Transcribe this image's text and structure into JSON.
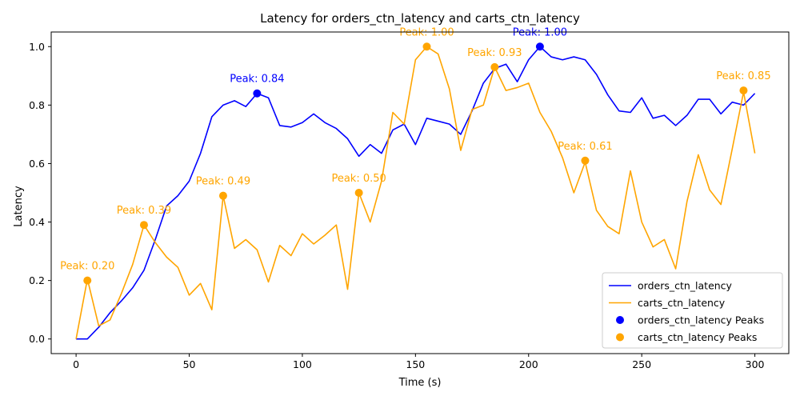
{
  "chart_data": {
    "type": "line",
    "title": "Latency for orders_ctn_latency and carts_ctn_latency",
    "xlabel": "Time (s)",
    "ylabel": "Latency",
    "xlim": [
      -11,
      315
    ],
    "ylim": [
      -0.05,
      1.05
    ],
    "x_ticks": [
      0,
      50,
      100,
      150,
      200,
      250,
      300
    ],
    "y_ticks": [
      0.0,
      0.2,
      0.4,
      0.6,
      0.8,
      1.0
    ],
    "x_tick_labels": [
      "0",
      "50",
      "100",
      "150",
      "200",
      "250",
      "300"
    ],
    "y_tick_labels": [
      "0.0",
      "0.2",
      "0.4",
      "0.6",
      "0.8",
      "1.0"
    ],
    "grid": false,
    "legend_position": "bottom-right",
    "x": [
      0,
      5,
      10,
      15,
      20,
      25,
      30,
      35,
      40,
      45,
      50,
      55,
      60,
      65,
      70,
      75,
      80,
      85,
      90,
      95,
      100,
      105,
      110,
      115,
      120,
      125,
      130,
      135,
      140,
      145,
      150,
      155,
      160,
      165,
      170,
      175,
      180,
      185,
      190,
      195,
      200,
      205,
      210,
      215,
      220,
      225,
      230,
      235,
      240,
      245,
      250,
      255,
      260,
      265,
      270,
      275,
      280,
      285,
      290,
      295,
      300
    ],
    "series": [
      {
        "name": "orders_ctn_latency",
        "color": "#0000ff",
        "values": [
          0.0,
          0.0,
          0.04,
          0.09,
          0.13,
          0.175,
          0.235,
          0.34,
          0.455,
          0.49,
          0.54,
          0.635,
          0.76,
          0.8,
          0.815,
          0.795,
          0.84,
          0.825,
          0.73,
          0.725,
          0.74,
          0.77,
          0.74,
          0.72,
          0.685,
          0.625,
          0.665,
          0.635,
          0.715,
          0.735,
          0.665,
          0.755,
          0.745,
          0.735,
          0.7,
          0.78,
          0.875,
          0.925,
          0.94,
          0.88,
          0.955,
          1.0,
          0.965,
          0.955,
          0.965,
          0.955,
          0.905,
          0.835,
          0.78,
          0.775,
          0.825,
          0.755,
          0.765,
          0.73,
          0.765,
          0.82,
          0.82,
          0.77,
          0.81,
          0.8,
          0.84
        ],
        "peaks": [
          {
            "x": 80,
            "y": 0.84,
            "label": "Peak: 0.84"
          },
          {
            "x": 205,
            "y": 1.0,
            "label": "Peak: 1.00"
          }
        ]
      },
      {
        "name": "carts_ctn_latency",
        "color": "#ffa500",
        "values": [
          0.0,
          0.205,
          0.045,
          0.065,
          0.155,
          0.255,
          0.39,
          0.33,
          0.28,
          0.245,
          0.15,
          0.19,
          0.1,
          0.49,
          0.31,
          0.34,
          0.305,
          0.195,
          0.32,
          0.285,
          0.36,
          0.325,
          0.355,
          0.39,
          0.17,
          0.5,
          0.4,
          0.54,
          0.775,
          0.735,
          0.955,
          1.0,
          0.975,
          0.855,
          0.645,
          0.785,
          0.8,
          0.93,
          0.85,
          0.86,
          0.875,
          0.775,
          0.71,
          0.62,
          0.5,
          0.605,
          0.44,
          0.385,
          0.36,
          0.575,
          0.4,
          0.315,
          0.34,
          0.24,
          0.47,
          0.63,
          0.51,
          0.46,
          0.65,
          0.845,
          0.635
        ],
        "peaks": [
          {
            "x": 5,
            "y": 0.2,
            "label": "Peak: 0.20"
          },
          {
            "x": 30,
            "y": 0.39,
            "label": "Peak: 0.39"
          },
          {
            "x": 65,
            "y": 0.49,
            "label": "Peak: 0.49"
          },
          {
            "x": 125,
            "y": 0.5,
            "label": "Peak: 0.50"
          },
          {
            "x": 155,
            "y": 1.0,
            "label": "Peak: 1.00"
          },
          {
            "x": 185,
            "y": 0.93,
            "label": "Peak: 0.93"
          },
          {
            "x": 225,
            "y": 0.61,
            "label": "Peak: 0.61"
          },
          {
            "x": 295,
            "y": 0.85,
            "label": "Peak: 0.85"
          }
        ]
      }
    ],
    "legend": [
      {
        "label": "orders_ctn_latency",
        "kind": "line",
        "color": "#0000ff"
      },
      {
        "label": "carts_ctn_latency",
        "kind": "line",
        "color": "#ffa500"
      },
      {
        "label": "orders_ctn_latency Peaks",
        "kind": "marker",
        "color": "#0000ff"
      },
      {
        "label": "carts_ctn_latency Peaks",
        "kind": "marker",
        "color": "#ffa500"
      }
    ]
  }
}
